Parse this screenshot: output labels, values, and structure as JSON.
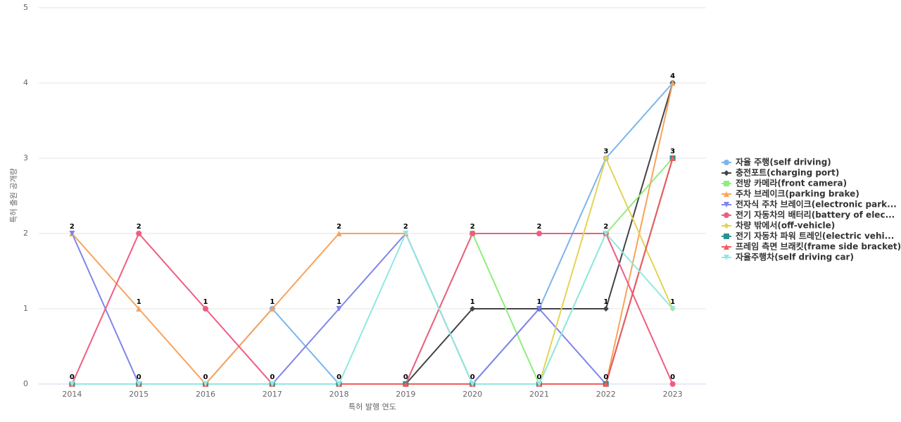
{
  "chart_data": {
    "type": "line",
    "x_label": "특허 발행 연도",
    "y_label": "특허 출원 공개량",
    "categories": [
      "2014",
      "2015",
      "2016",
      "2017",
      "2018",
      "2019",
      "2020",
      "2021",
      "2022",
      "2023"
    ],
    "ylim": [
      0,
      5
    ],
    "yticks": [
      0,
      1,
      2,
      3,
      4,
      5
    ],
    "grid": true,
    "legend": "right",
    "series": [
      {
        "name": "자율 주행(self driving)",
        "color": "#7cb5ec",
        "marker": "circle",
        "values": [
          0,
          0,
          0,
          1,
          0,
          0,
          0,
          1,
          3,
          4
        ]
      },
      {
        "name": "충전포트(charging port)",
        "color": "#434348",
        "marker": "diamond",
        "values": [
          0,
          0,
          0,
          0,
          0,
          0,
          1,
          1,
          1,
          4
        ]
      },
      {
        "name": "전방 카메라(front camera)",
        "color": "#90ed7d",
        "marker": "square",
        "values": [
          0,
          0,
          0,
          0,
          0,
          0,
          2,
          0,
          2,
          3
        ]
      },
      {
        "name": "주차 브레이크(parking brake)",
        "color": "#f7a35c",
        "marker": "triangle",
        "values": [
          2,
          1,
          0,
          1,
          2,
          2,
          0,
          0,
          0,
          4
        ]
      },
      {
        "name": "전자식 주차 브레이크(electronic park...",
        "color": "#8085e9",
        "marker": "triangle-down",
        "values": [
          2,
          0,
          0,
          0,
          1,
          2,
          0,
          1,
          0,
          3
        ]
      },
      {
        "name": "전기 자동차의 배터리(battery of elec...",
        "color": "#f15c80",
        "marker": "circle",
        "values": [
          0,
          2,
          1,
          0,
          0,
          0,
          2,
          2,
          2,
          0
        ]
      },
      {
        "name": "차량 밖에서(off-vehicle)",
        "color": "#e4d354",
        "marker": "diamond",
        "values": [
          0,
          0,
          0,
          0,
          0,
          0,
          0,
          0,
          3,
          1
        ]
      },
      {
        "name": "전기 자동차 파워 트레인(electric vehi...",
        "color": "#2b908f",
        "marker": "square",
        "values": [
          0,
          0,
          0,
          0,
          0,
          0,
          0,
          0,
          0,
          3
        ]
      },
      {
        "name": "프레임 측면 브래킷(frame side bracket)",
        "color": "#f45b5b",
        "marker": "triangle",
        "values": [
          0,
          0,
          0,
          0,
          0,
          0,
          0,
          0,
          0,
          3
        ]
      },
      {
        "name": "자율주행차(self driving car)",
        "color": "#91e8e1",
        "marker": "triangle-down",
        "values": [
          0,
          0,
          0,
          0,
          0,
          2,
          0,
          0,
          2,
          1
        ]
      }
    ]
  }
}
